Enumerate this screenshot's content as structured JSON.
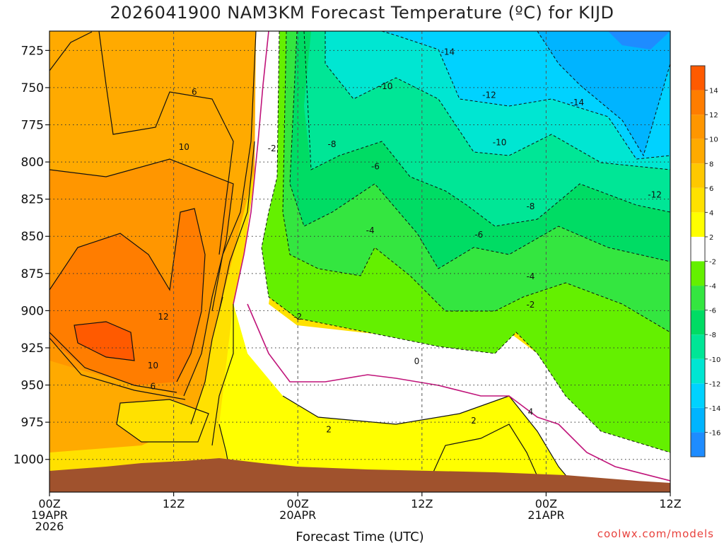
{
  "chart_data": {
    "type": "contour",
    "title": "2026041900 NAM3KM Forecast Temperature (ºC) for KIJD",
    "xlabel": "Forecast Time (UTC)",
    "ylabel": "",
    "y_ticks": [
      "725",
      "750",
      "775",
      "800",
      "825",
      "850",
      "875",
      "900",
      "925",
      "950",
      "975",
      "1000"
    ],
    "y_range": [
      712,
      1022
    ],
    "x_range_hours": [
      0,
      60
    ],
    "x_ticks": [
      {
        "hour": 0,
        "lines": [
          "00Z",
          "19APR",
          "2026"
        ]
      },
      {
        "hour": 12,
        "lines": [
          "12Z"
        ]
      },
      {
        "hour": 24,
        "lines": [
          "00Z",
          "20APR"
        ]
      },
      {
        "hour": 36,
        "lines": [
          "12Z"
        ]
      },
      {
        "hour": 48,
        "lines": [
          "00Z",
          "21APR"
        ]
      },
      {
        "hour": 60,
        "lines": [
          "12Z"
        ]
      }
    ],
    "colorbar": {
      "levels": [
        "-16",
        "-14",
        "-12",
        "-10",
        "-8",
        "-6",
        "-4",
        "-2",
        "2",
        "4",
        "6",
        "8",
        "10",
        "12",
        "14"
      ],
      "colors": [
        "#1e8cff",
        "#00b4ff",
        "#00d2ff",
        "#00e6d2",
        "#00e696",
        "#00dc64",
        "#34e640",
        "#64f000",
        "#ffffff",
        "#ffff00",
        "#ffe100",
        "#ffc800",
        "#ffaa00",
        "#ff9600",
        "#ff7d00",
        "#ff5a00"
      ]
    },
    "contour_labels": [
      {
        "text": "-14",
        "hour": 38.5,
        "p": 726
      },
      {
        "text": "-10",
        "hour": 32.5,
        "p": 749
      },
      {
        "text": "-12",
        "hour": 42.5,
        "p": 755
      },
      {
        "text": "-14",
        "hour": 51,
        "p": 760
      },
      {
        "text": "-2",
        "hour": 21.5,
        "p": 791
      },
      {
        "text": "-8",
        "hour": 27.3,
        "p": 788
      },
      {
        "text": "-10",
        "hour": 43.5,
        "p": 787
      },
      {
        "text": "-6",
        "hour": 31.5,
        "p": 803
      },
      {
        "text": "-12",
        "hour": 58.5,
        "p": 822
      },
      {
        "text": "-8",
        "hour": 46.5,
        "p": 830
      },
      {
        "text": "-4",
        "hour": 31,
        "p": 846
      },
      {
        "text": "-6",
        "hour": 41.5,
        "p": 849
      },
      {
        "text": "-4",
        "hour": 46.5,
        "p": 877
      },
      {
        "text": "-2",
        "hour": 46.5,
        "p": 896
      },
      {
        "text": "-2",
        "hour": 24,
        "p": 904
      },
      {
        "text": "0",
        "hour": 35.5,
        "p": 934
      },
      {
        "text": "2",
        "hour": 27,
        "p": 980
      },
      {
        "text": "2",
        "hour": 41,
        "p": 974
      },
      {
        "text": "4",
        "hour": 46.5,
        "p": 968
      },
      {
        "text": "6",
        "hour": 14,
        "p": 753
      },
      {
        "text": "10",
        "hour": 13,
        "p": 790
      },
      {
        "text": "12",
        "hour": 11,
        "p": 904
      },
      {
        "text": "10",
        "hour": 10,
        "p": 937
      },
      {
        "text": "6",
        "hour": 10,
        "p": 951
      }
    ]
  },
  "credit": "coolwx.com/models"
}
